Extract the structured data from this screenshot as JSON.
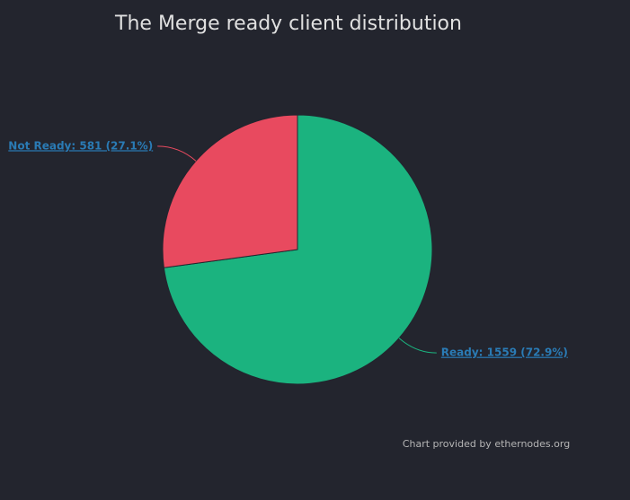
{
  "chart_data": {
    "type": "pie",
    "title": "The Merge ready client distribution",
    "values": [
      1559,
      581
    ],
    "value_labels": [
      "Ready: 1559 (72.9%)",
      "Not Ready: 581 (27.1%)"
    ],
    "colors": [
      "#1bb37f",
      "#e84a5f"
    ],
    "credits": "Chart provided by ethernodes.org"
  }
}
